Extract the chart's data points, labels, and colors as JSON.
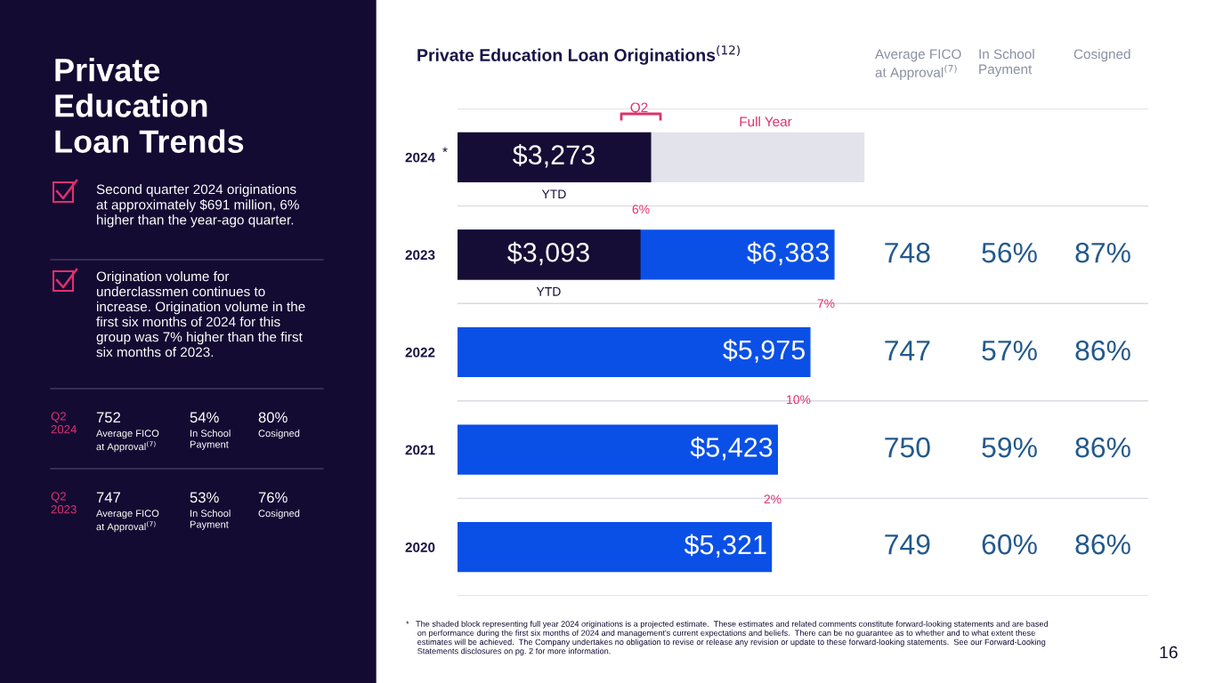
{
  "chart_data": {
    "type": "bar",
    "orientation": "horizontal",
    "title": "Private Education Loan Originations$^{(12)}$",
    "categories": [
      "2024",
      "2023",
      "2022",
      "2021",
      "2020"
    ],
    "series": [
      {
        "colors": [
          "#e3e3ec",
          "#0b50e6",
          "#0b50e6",
          "#0b50e6",
          "#0b50e6"
        ],
        "values": [
          6890,
          6383,
          5975,
          5423,
          5321
        ],
        "value_labels": [
          null,
          "$6,383",
          "$5,975",
          "$5,423",
          "$5,321"
        ]
      },
      {
        "name": "YTD",
        "color": "#150d35",
        "values": [
          3273,
          3093,
          null,
          null,
          null
        ],
        "value_labels": [
          "$3,273",
          "$3,093",
          null,
          null,
          null
        ]
      }
    ],
    "grid": "y",
    "tick_labels": "y",
    "annotations": [
      "Private\nEducation\nLoan Trends",
      "Second quarter 2024 originations\nat approximately $691 million, 6%\nhigher than the year-ago quarter.",
      "Origination volume for\nunderclassmen continues to\nincrease. Origination volume in the\nfirst six months of 2024 for this\ngroup was 7% higher than the first\nsix months of 2023.",
      "Q2\n2024",
      "752",
      "Average FICO\nat Approval$^{(7)}$",
      "54%",
      "In School\nPayment",
      "80%",
      "Cosigned",
      "Q2\n2023",
      "747",
      "Average FICO\nat Approval$^{(7)}$",
      "53%",
      "In School\nPayment",
      "76%",
      "Cosigned",
      "Average FICO\nat Approval$^{(7)}$",
      "In School\nPayment",
      "Cosigned",
      "Q2",
      "Full Year",
      "*",
      "6%",
      "7%",
      "10%",
      "2%",
      "*   The shaded block representing full year 2024 originations is a projected estimate.  These estimates and related comments constitute forward-looking statements and are based\n     on performance during the first six months of 2024 and management's current expectations and beliefs.  There can be no guarantee as to whether and to what extent these\n     estimates will be achieved.  The Company undertakes no obligation to revise or release any revision or update to these forward-looking statements.  See our Forward-Looking\n     Statements disclosures on pg. 2 for more information.",
      "16",
      "748",
      "56%",
      "87%",
      "747",
      "57%",
      "86%",
      "750",
      "59%",
      "86%",
      "749",
      "60%",
      "86%"
    ]
  }
}
